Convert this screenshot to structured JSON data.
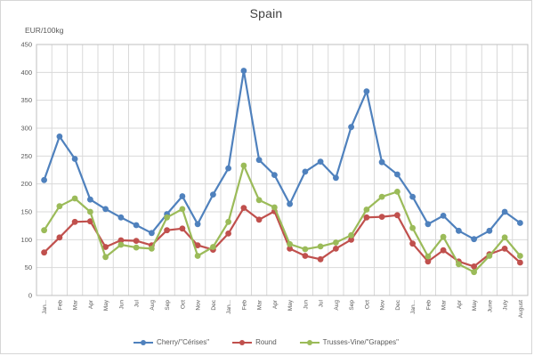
{
  "chart_data": {
    "type": "line",
    "title": "Spain",
    "unit_label": "EUR/100kg",
    "ylim": [
      0,
      450
    ],
    "ytick_step": 50,
    "grid": true,
    "legend_position": "bottom",
    "marker": "circle",
    "categories": [
      "Jan...",
      "Feb",
      "Mar",
      "Apr",
      "May",
      "Jun",
      "Jul",
      "Aug",
      "Sep",
      "Oct",
      "Nov",
      "Dec",
      "Jan...",
      "Feb",
      "Mar",
      "Apr",
      "May",
      "Jun",
      "Jul",
      "Aug",
      "Sep",
      "Oct",
      "Nov",
      "Dec",
      "Jan...",
      "Feb",
      "Mar",
      "Apr",
      "May",
      "June",
      "July",
      "August"
    ],
    "series": [
      {
        "name": "Cherry/\"Cérises\"",
        "color": "#4F81BD",
        "values": [
          207,
          285,
          245,
          172,
          155,
          140,
          126,
          112,
          146,
          178,
          128,
          181,
          228,
          403,
          243,
          216,
          164,
          222,
          240,
          211,
          302,
          366,
          239,
          217,
          177,
          128,
          143,
          116,
          101,
          116,
          150,
          130
        ]
      },
      {
        "name": "Round",
        "color": "#C0504D",
        "values": [
          77,
          104,
          132,
          133,
          87,
          99,
          98,
          90,
          117,
          120,
          90,
          82,
          111,
          157,
          136,
          151,
          84,
          71,
          65,
          84,
          100,
          140,
          141,
          144,
          93,
          61,
          81,
          61,
          52,
          74,
          84,
          59
        ]
      },
      {
        "name": "Trusses-Vine/\"Grappes\"",
        "color": "#9BBB59",
        "values": [
          117,
          160,
          174,
          150,
          69,
          91,
          86,
          84,
          140,
          155,
          71,
          87,
          132,
          233,
          171,
          158,
          92,
          83,
          88,
          95,
          108,
          154,
          177,
          186,
          121,
          70,
          105,
          56,
          42,
          71,
          104,
          71
        ]
      }
    ],
    "colors": {
      "gridline": "#d9d9d9",
      "axis_line": "#bfbfbf",
      "tick_text": "#595959",
      "title_text": "#404040"
    }
  }
}
